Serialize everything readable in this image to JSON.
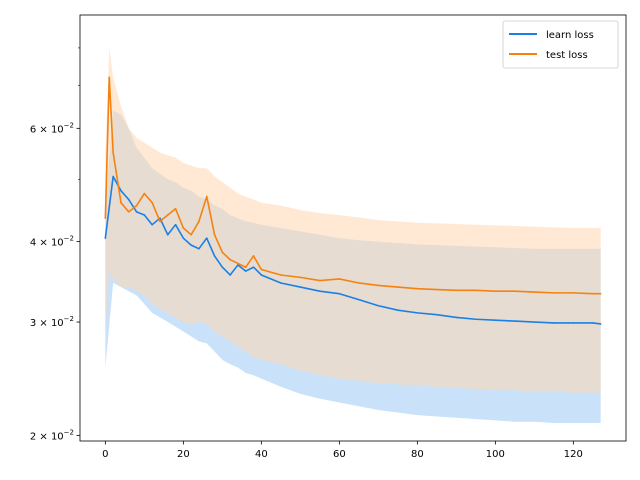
{
  "chart_data": {
    "type": "line",
    "title": "",
    "xlabel": "",
    "ylabel": "",
    "xlim": [
      -6.5,
      133.5
    ],
    "ylim": [
      0.0196,
      0.09
    ],
    "yscale": "log",
    "grid": false,
    "legend_position": "top-right",
    "x_ticks": [
      0,
      20,
      40,
      60,
      80,
      100,
      120
    ],
    "x_tick_labels": [
      "0",
      "20",
      "40",
      "60",
      "80",
      "100",
      "120"
    ],
    "y_major_ticks": [
      0.02,
      0.03,
      0.04,
      0.06
    ],
    "y_major_tick_labels": [
      {
        "mantissa": "2",
        "exp": "−2"
      },
      {
        "mantissa": "3",
        "exp": "−2"
      },
      {
        "mantissa": "4",
        "exp": "−2"
      },
      {
        "mantissa": "6",
        "exp": "−2"
      }
    ],
    "y_minor_ticks": [
      0.05,
      0.07,
      0.08
    ],
    "series": [
      {
        "name": "learn loss",
        "color": "#1f77b4",
        "line_color": "#1a80e6",
        "fill_color": "#a6cff5",
        "x": [
          0,
          2,
          4,
          6,
          8,
          10,
          12,
          14,
          16,
          18,
          20,
          22,
          24,
          26,
          28,
          30,
          32,
          34,
          36,
          38,
          40,
          45,
          50,
          55,
          60,
          65,
          70,
          75,
          80,
          85,
          90,
          95,
          100,
          105,
          110,
          115,
          120,
          125,
          127
        ],
        "y": [
          0.0405,
          0.0505,
          0.048,
          0.0465,
          0.0445,
          0.044,
          0.0425,
          0.0435,
          0.041,
          0.0425,
          0.0405,
          0.0395,
          0.039,
          0.0405,
          0.038,
          0.0365,
          0.0355,
          0.0368,
          0.036,
          0.0365,
          0.0355,
          0.0345,
          0.034,
          0.0335,
          0.0332,
          0.0325,
          0.0318,
          0.0313,
          0.031,
          0.0308,
          0.0305,
          0.0303,
          0.0302,
          0.0301,
          0.03,
          0.0299,
          0.0299,
          0.0299,
          0.0298
        ],
        "lower": [
          0.0255,
          0.0345,
          0.034,
          0.0335,
          0.033,
          0.032,
          0.031,
          0.0305,
          0.03,
          0.0295,
          0.029,
          0.0285,
          0.028,
          0.0278,
          0.027,
          0.0262,
          0.0258,
          0.0255,
          0.025,
          0.0248,
          0.0245,
          0.0238,
          0.0232,
          0.0228,
          0.0225,
          0.0222,
          0.0219,
          0.0217,
          0.0215,
          0.0214,
          0.0213,
          0.0212,
          0.0211,
          0.021,
          0.021,
          0.0209,
          0.0209,
          0.0209,
          0.0209
        ],
        "upper": [
          0.0455,
          0.064,
          0.063,
          0.06,
          0.056,
          0.054,
          0.052,
          0.051,
          0.05,
          0.0495,
          0.0485,
          0.048,
          0.047,
          0.0465,
          0.0455,
          0.045,
          0.044,
          0.0435,
          0.043,
          0.0428,
          0.0425,
          0.042,
          0.0415,
          0.041,
          0.0405,
          0.0402,
          0.04,
          0.0398,
          0.0396,
          0.0395,
          0.0394,
          0.0393,
          0.0392,
          0.0391,
          0.039,
          0.039,
          0.039,
          0.039,
          0.039
        ]
      },
      {
        "name": "test loss",
        "color": "#ff7f0e",
        "line_color": "#f5820f",
        "fill_color": "#ffd7b0",
        "x": [
          0,
          1,
          2,
          4,
          6,
          8,
          10,
          12,
          14,
          16,
          18,
          20,
          22,
          24,
          26,
          28,
          30,
          32,
          34,
          36,
          38,
          40,
          45,
          50,
          55,
          60,
          65,
          70,
          75,
          80,
          85,
          90,
          95,
          100,
          105,
          110,
          115,
          120,
          125,
          127
        ],
        "y": [
          0.0435,
          0.072,
          0.055,
          0.046,
          0.0445,
          0.0455,
          0.0475,
          0.046,
          0.043,
          0.044,
          0.045,
          0.042,
          0.041,
          0.043,
          0.047,
          0.041,
          0.0385,
          0.0375,
          0.037,
          0.0365,
          0.038,
          0.0362,
          0.0355,
          0.0352,
          0.0348,
          0.035,
          0.0345,
          0.0342,
          0.034,
          0.0338,
          0.0337,
          0.0336,
          0.0336,
          0.0335,
          0.0335,
          0.0334,
          0.0333,
          0.0333,
          0.0332,
          0.0332
        ],
        "lower": [
          0.029,
          0.036,
          0.035,
          0.034,
          0.034,
          0.0335,
          0.033,
          0.032,
          0.0315,
          0.031,
          0.0305,
          0.03,
          0.0298,
          0.03,
          0.0298,
          0.029,
          0.0285,
          0.028,
          0.0275,
          0.027,
          0.0265,
          0.0262,
          0.0258,
          0.0252,
          0.0248,
          0.0245,
          0.0243,
          0.0241,
          0.024,
          0.0239,
          0.0238,
          0.0237,
          0.0236,
          0.0235,
          0.0235,
          0.0234,
          0.0234,
          0.0233,
          0.0233,
          0.0233
        ],
        "upper": [
          0.055,
          0.08,
          0.072,
          0.065,
          0.06,
          0.058,
          0.057,
          0.056,
          0.055,
          0.0545,
          0.054,
          0.053,
          0.0525,
          0.052,
          0.052,
          0.0505,
          0.0495,
          0.0485,
          0.0475,
          0.047,
          0.0465,
          0.046,
          0.0455,
          0.0448,
          0.0443,
          0.044,
          0.0436,
          0.0432,
          0.043,
          0.0428,
          0.0427,
          0.0426,
          0.0425,
          0.0424,
          0.0423,
          0.0422,
          0.0421,
          0.042,
          0.042,
          0.042
        ]
      }
    ]
  }
}
